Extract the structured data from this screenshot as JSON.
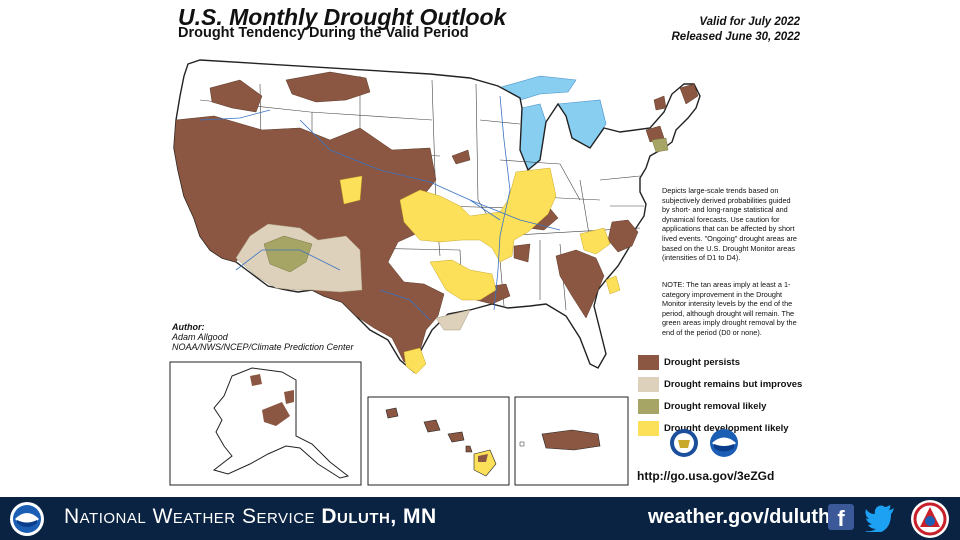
{
  "header": {
    "title": "U.S. Monthly Drought Outlook",
    "subtitle": "Drought Tendency During the Valid Period",
    "valid": "Valid for July 2022",
    "released": "Released June 30, 2022"
  },
  "description": "Depicts large-scale trends based on subjectively derived probabilities guided by short- and long-range statistical and dynamical forecasts. Use caution for applications that can be affected by short lived events. \"Ongoing\" drought areas are based on the U.S. Drought Monitor areas (intensities of D1 to D4).",
  "note": "NOTE: The tan areas imply at least a 1-category improvement in the Drought Monitor intensity levels by the end of the period, although drought will remain. The green areas imply drought removal by the end of the period (D0 or none).",
  "author": {
    "label": "Author:",
    "name": "Adam Allgood",
    "org": "NOAA/NWS/NCEP/Climate Prediction Center"
  },
  "legend": [
    {
      "label": "Drought persists",
      "color": "#8b5742"
    },
    {
      "label": "Drought remains but improves",
      "color": "#ddd1bc"
    },
    {
      "label": "Drought removal likely",
      "color": "#a7a565"
    },
    {
      "label": "Drought development likely",
      "color": "#fde05a"
    }
  ],
  "url": "http://go.usa.gov/3eZGd",
  "footer": {
    "agency": "National Weather Service",
    "office": "Duluth, MN",
    "website": "weather.gov/duluth"
  },
  "icons": [
    "noaa-logo-icon",
    "facebook-icon",
    "twitter-icon",
    "nws-logo-icon",
    "doc-seal-icon"
  ]
}
